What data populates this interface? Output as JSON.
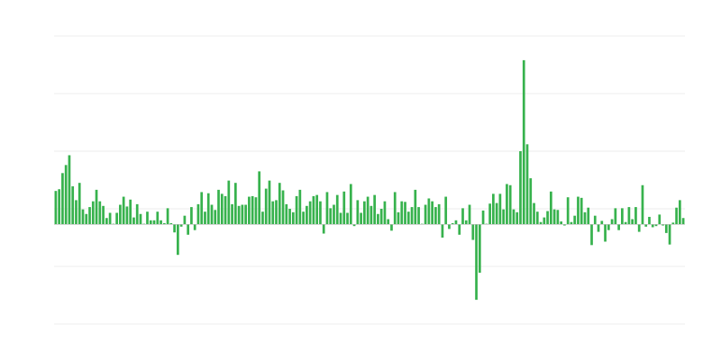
{
  "chart_data": {
    "type": "bar",
    "title": "",
    "xlabel": "",
    "ylabel": "",
    "ylim": [
      -17.3,
      32.7
    ],
    "gridlines": [
      -17.3,
      -7.3,
      2.7,
      12.7,
      22.7,
      32.7
    ],
    "grid": true,
    "legend": "none",
    "colors": {
      "bar": "#37b24d",
      "grid": "#eeeeee",
      "baseline": "#bbbbbb"
    },
    "values": [
      5.8,
      6.1,
      8.9,
      10.3,
      12,
      6.6,
      4.2,
      7.2,
      2.6,
      1.8,
      3,
      4,
      6,
      4,
      3.2,
      1.1,
      2,
      0.1,
      2,
      3.4,
      4.8,
      3.1,
      4.3,
      1.2,
      3.5,
      1.8,
      0.1,
      2.2,
      0.7,
      0.7,
      2.2,
      0.7,
      0.2,
      2.8,
      0.2,
      -1.4,
      -5.3,
      -0.4,
      1.5,
      -1.8,
      3,
      -1,
      3.5,
      5.6,
      2.2,
      5.4,
      3.4,
      2.5,
      6,
      5.3,
      4.9,
      7.6,
      3.5,
      7.2,
      3.2,
      3.4,
      3.4,
      4.8,
      4.9,
      4.7,
      9.2,
      2.2,
      6.2,
      7.6,
      4,
      4.2,
      7.2,
      5.9,
      3.5,
      2.7,
      2.1,
      4.9,
      6,
      2.2,
      3.2,
      4,
      4.9,
      5.1,
      4,
      -1.6,
      5.6,
      2.8,
      3.4,
      5.1,
      2,
      5.7,
      2,
      7,
      -0.3,
      4.2,
      2,
      4,
      4.8,
      3.2,
      5.1,
      1.8,
      2.7,
      4,
      0.9,
      -1.1,
      5.6,
      2.1,
      4,
      3.9,
      2.2,
      3,
      6,
      3,
      0.1,
      3.4,
      4.5,
      4,
      3,
      3.5,
      -2.3,
      4.8,
      -0.8,
      0.2,
      0.7,
      -1.8,
      2.8,
      0.7,
      3.4,
      -2.7,
      -13.1,
      -8.4,
      2.4,
      0.1,
      3.6,
      5.3,
      3.7,
      5.3,
      2.6,
      7,
      6.8,
      2.6,
      2.1,
      12.7,
      28.5,
      13.9,
      8,
      3.7,
      2.2,
      0.4,
      1.2,
      2.3,
      5.7,
      2.6,
      2.5,
      0.5,
      -0.2,
      4.7,
      0.4,
      1.5,
      4.8,
      4.6,
      2.1,
      2.9,
      -3.6,
      1.5,
      -1.3,
      0.6,
      -3,
      -1,
      0.9,
      2.8,
      -1,
      2.8,
      0.4,
      3,
      0.9,
      3,
      -1.3,
      6.8,
      -0.4,
      1.3,
      -0.5,
      -0.3,
      1.7,
      -0.2,
      -1.5,
      -3.5,
      0.3,
      2.9,
      4.2,
      1.1
    ]
  }
}
